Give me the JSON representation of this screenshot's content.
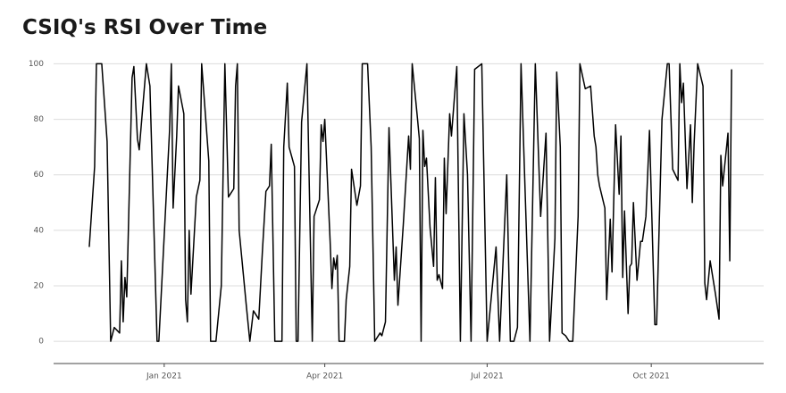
{
  "chart_data": {
    "type": "line",
    "title": "CSIQ's RSI Over Time",
    "color": "#000000",
    "grid": true,
    "xlim": [
      "2020-10-31",
      "2021-12-03"
    ],
    "xticks": [
      {
        "value": "2021-01-01",
        "label": "Jan 2021"
      },
      {
        "value": "2021-04-01",
        "label": "Apr 2021"
      },
      {
        "value": "2021-07-01",
        "label": "Jul 2021"
      },
      {
        "value": "2021-10-01",
        "label": "Oct 2021"
      }
    ],
    "ylim": [
      -8,
      104
    ],
    "yticks": [
      0,
      20,
      40,
      60,
      80,
      100
    ],
    "x": [
      "2020-11-20",
      "2020-11-23",
      "2020-11-24",
      "2020-11-27",
      "2020-11-30",
      "2020-12-02",
      "2020-12-04",
      "2020-12-07",
      "2020-12-08",
      "2020-12-09",
      "2020-12-10",
      "2020-12-11",
      "2020-12-14",
      "2020-12-15",
      "2020-12-17",
      "2020-12-18",
      "2020-12-22",
      "2020-12-24",
      "2020-12-28",
      "2020-12-29",
      "2021-01-04",
      "2021-01-05",
      "2021-01-06",
      "2021-01-08",
      "2021-01-09",
      "2021-01-12",
      "2021-01-13",
      "2021-01-14",
      "2021-01-15",
      "2021-01-16",
      "2021-01-19",
      "2021-01-21",
      "2021-01-22",
      "2021-01-26",
      "2021-01-27",
      "2021-01-30",
      "2021-02-02",
      "2021-02-04",
      "2021-02-06",
      "2021-02-09",
      "2021-02-10",
      "2021-02-11",
      "2021-02-12",
      "2021-02-16",
      "2021-02-18",
      "2021-02-20",
      "2021-02-23",
      "2021-02-25",
      "2021-02-27",
      "2021-03-01",
      "2021-03-02",
      "2021-03-04",
      "2021-03-08",
      "2021-03-09",
      "2021-03-11",
      "2021-03-12",
      "2021-03-15",
      "2021-03-16",
      "2021-03-17",
      "2021-03-19",
      "2021-03-22",
      "2021-03-25",
      "2021-03-26",
      "2021-03-29",
      "2021-03-30",
      "2021-03-31",
      "2021-04-01",
      "2021-04-04",
      "2021-04-05",
      "2021-04-06",
      "2021-04-07",
      "2021-04-08",
      "2021-04-09",
      "2021-04-12",
      "2021-04-13",
      "2021-04-15",
      "2021-04-16",
      "2021-04-19",
      "2021-04-21",
      "2021-04-22",
      "2021-04-25",
      "2021-04-27",
      "2021-04-29",
      "2021-05-02",
      "2021-05-03",
      "2021-05-05",
      "2021-05-07",
      "2021-05-10",
      "2021-05-11",
      "2021-05-12",
      "2021-05-15",
      "2021-05-18",
      "2021-05-19",
      "2021-05-20",
      "2021-05-23",
      "2021-05-24",
      "2021-05-25",
      "2021-05-26",
      "2021-05-27",
      "2021-05-28",
      "2021-05-30",
      "2021-06-01",
      "2021-06-02",
      "2021-06-03",
      "2021-06-04",
      "2021-06-06",
      "2021-06-07",
      "2021-06-08",
      "2021-06-10",
      "2021-06-11",
      "2021-06-14",
      "2021-06-16",
      "2021-06-18",
      "2021-06-20",
      "2021-06-22",
      "2021-06-24",
      "2021-06-28",
      "2021-07-01",
      "2021-07-06",
      "2021-07-08",
      "2021-07-12",
      "2021-07-14",
      "2021-07-16",
      "2021-07-18",
      "2021-07-20",
      "2021-07-25",
      "2021-07-28",
      "2021-07-31",
      "2021-08-03",
      "2021-08-05",
      "2021-08-08",
      "2021-08-09",
      "2021-08-11",
      "2021-08-12",
      "2021-08-14",
      "2021-08-16",
      "2021-08-18",
      "2021-08-21",
      "2021-08-22",
      "2021-08-25",
      "2021-08-28",
      "2021-08-30",
      "2021-08-31",
      "2021-09-01",
      "2021-09-02",
      "2021-09-05",
      "2021-09-06",
      "2021-09-08",
      "2021-09-09",
      "2021-09-11",
      "2021-09-13",
      "2021-09-14",
      "2021-09-15",
      "2021-09-16",
      "2021-09-18",
      "2021-09-19",
      "2021-09-20",
      "2021-09-21",
      "2021-09-23",
      "2021-09-25",
      "2021-09-26",
      "2021-09-28",
      "2021-09-30",
      "2021-10-03",
      "2021-10-04",
      "2021-10-07",
      "2021-10-10",
      "2021-10-11",
      "2021-10-13",
      "2021-10-16",
      "2021-10-17",
      "2021-10-18",
      "2021-10-19",
      "2021-10-21",
      "2021-10-23",
      "2021-10-24",
      "2021-10-25",
      "2021-10-27",
      "2021-10-30",
      "2021-10-31",
      "2021-11-01",
      "2021-11-03",
      "2021-11-06",
      "2021-11-08",
      "2021-11-09",
      "2021-11-10",
      "2021-11-13",
      "2021-11-14",
      "2021-11-15"
    ],
    "values": [
      34,
      63,
      100,
      100,
      72,
      0,
      5,
      3,
      29,
      7,
      23,
      16,
      95,
      99,
      73,
      69,
      100,
      92,
      0,
      0,
      76,
      100,
      48,
      74,
      92,
      82,
      15,
      7,
      40,
      17,
      52,
      58,
      100,
      65,
      0,
      0,
      20,
      100,
      52,
      55,
      92,
      100,
      40,
      13,
      0,
      11,
      8,
      32,
      54,
      56,
      71,
      0,
      0,
      70,
      93,
      70,
      63,
      0,
      0,
      79,
      100,
      0,
      45,
      51,
      78,
      72,
      80,
      36,
      19,
      30,
      26,
      31,
      0,
      0,
      15,
      27,
      62,
      49,
      56,
      100,
      100,
      70,
      0,
      3,
      2,
      7,
      77,
      22,
      34,
      13,
      42,
      74,
      62,
      100,
      80,
      73,
      0,
      76,
      63,
      66,
      41,
      27,
      59,
      22,
      24,
      19,
      66,
      46,
      82,
      74,
      99,
      0,
      82,
      60,
      0,
      98,
      100,
      0,
      34,
      0,
      60,
      0,
      0,
      5,
      100,
      0,
      100,
      45,
      75,
      0,
      37,
      97,
      70,
      3,
      2,
      0,
      0,
      45,
      100,
      91,
      92,
      74,
      70,
      60,
      56,
      48,
      15,
      44,
      25,
      78,
      53,
      74,
      23,
      47,
      10,
      27,
      28,
      50,
      22,
      36,
      36,
      45,
      76,
      6,
      6,
      80,
      100,
      100,
      62,
      58,
      100,
      86,
      93,
      55,
      78,
      50,
      71,
      100,
      92,
      21,
      15,
      29,
      17,
      8,
      67,
      56,
      75,
      29,
      98
    ]
  }
}
